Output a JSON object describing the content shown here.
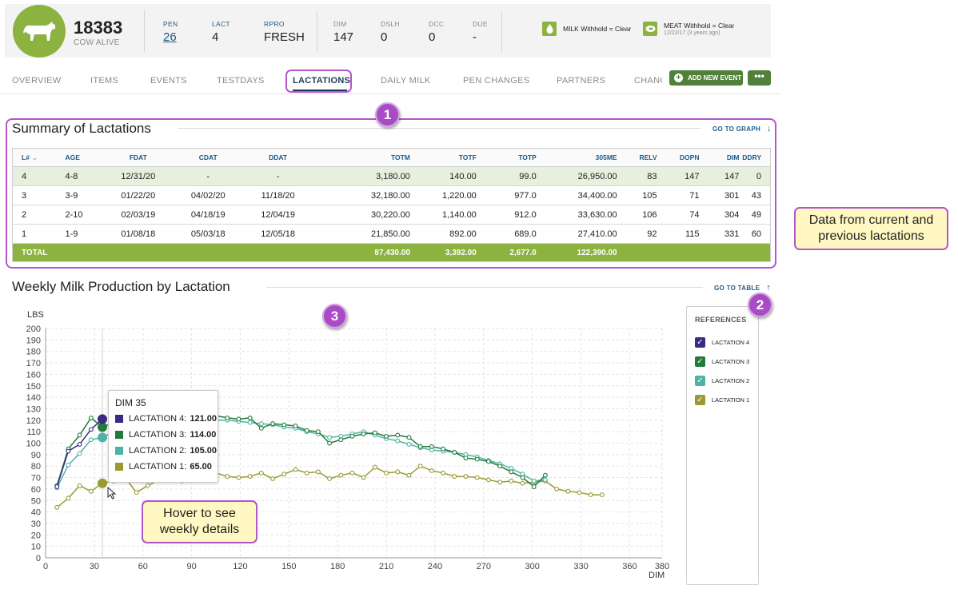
{
  "header": {
    "cow_id": "18383",
    "cow_status": "COW ALIVE",
    "stats": [
      {
        "label": "PEN",
        "value": "26",
        "link": true
      },
      {
        "label": "LACT",
        "value": "4"
      },
      {
        "label": "RPRO",
        "value": "FRESH"
      },
      {
        "label": "DIM",
        "value": "147"
      },
      {
        "label": "DSLH",
        "value": "0"
      },
      {
        "label": "DCC",
        "value": "0"
      },
      {
        "label": "DUE",
        "value": "-"
      }
    ],
    "milk_withhold": "MILK Withhold = Clear",
    "meat_withhold": "MEAT Withhold = Clear",
    "meat_withhold_date": "12/22/17 (3 years ago)"
  },
  "tabs": [
    "OVERVIEW",
    "ITEMS",
    "EVENTS",
    "TESTDAYS",
    "LACTATIONS",
    "DAILY MILK",
    "PEN CHANGES",
    "PARTNERS",
    "CHANG"
  ],
  "actions": {
    "add_event": "ADD NEW EVENT",
    "more": "•••"
  },
  "summary": {
    "title": "Summary of Lactations",
    "goto_graph": "GO TO GRAPH",
    "columns": [
      "L#",
      "AGE",
      "FDAT",
      "CDAT",
      "DDAT",
      "TOTM",
      "TOTF",
      "TOTP",
      "305ME",
      "RELV",
      "DOPN",
      "DIM",
      "DDRY"
    ],
    "rows": [
      [
        "4",
        "4-8",
        "12/31/20",
        "-",
        "-",
        "3,180.00",
        "140.00",
        "99.0",
        "26,950.00",
        "83",
        "147",
        "147",
        "0"
      ],
      [
        "3",
        "3-9",
        "01/22/20",
        "04/02/20",
        "11/18/20",
        "32,180.00",
        "1,220.00",
        "977.0",
        "34,400.00",
        "105",
        "71",
        "301",
        "43"
      ],
      [
        "2",
        "2-10",
        "02/03/19",
        "04/18/19",
        "12/04/19",
        "30,220.00",
        "1,140.00",
        "912.0",
        "33,630.00",
        "106",
        "74",
        "304",
        "49"
      ],
      [
        "1",
        "1-9",
        "01/08/18",
        "05/03/18",
        "12/05/18",
        "21,850.00",
        "892.00",
        "689.0",
        "27,410.00",
        "92",
        "115",
        "331",
        "60"
      ]
    ],
    "total_label": "TOTAL",
    "totals": {
      "TOTM": "87,430.00",
      "TOTF": "3,392.00",
      "TOTP": "2,677.0",
      "305ME": "122,390.00"
    }
  },
  "chart_section": {
    "title": "Weekly Milk Production by Lactation",
    "goto_table": "GO TO TABLE"
  },
  "callouts": {
    "badge1": "1",
    "badge2": "2",
    "badge3": "3",
    "table_note": "Data from current and previous lactations",
    "hover_note": "Hover to see weekly details"
  },
  "legend": {
    "title": "REFERENCES",
    "items": [
      {
        "label": "LACTATION 4",
        "color": "#3a2a86"
      },
      {
        "label": "LACTATION 3",
        "color": "#237a3b"
      },
      {
        "label": "LACTATION 2",
        "color": "#4db3a6"
      },
      {
        "label": "LACTATION 1",
        "color": "#9a9a33"
      }
    ]
  },
  "tooltip": {
    "title": "DIM 35",
    "rows": [
      {
        "label": "LACTATION 4:",
        "value": "121.00",
        "color": "#3a2a86"
      },
      {
        "label": "LACTATION 3:",
        "value": "114.00",
        "color": "#237a3b"
      },
      {
        "label": "LACTATION 2:",
        "value": "105.00",
        "color": "#4db3a6"
      },
      {
        "label": "LACTATION 1:",
        "value": "65.00",
        "color": "#9a9a33"
      }
    ]
  },
  "chart_data": {
    "type": "line",
    "ylabel": "LBS",
    "xlabel": "DIM",
    "xlim": [
      0,
      380
    ],
    "ylim": [
      0,
      200
    ],
    "x_ticks": [
      0,
      30,
      60,
      90,
      120,
      150,
      180,
      210,
      240,
      270,
      300,
      330,
      360,
      380
    ],
    "y_ticks": [
      0,
      10,
      20,
      30,
      40,
      50,
      60,
      70,
      80,
      90,
      100,
      110,
      120,
      130,
      140,
      150,
      160,
      170,
      180,
      190,
      200
    ],
    "hover_dim": 35,
    "series": [
      {
        "name": "LACTATION 4",
        "color": "#3a2a86",
        "points": [
          [
            7,
            62
          ],
          [
            14,
            93
          ],
          [
            21,
            99
          ],
          [
            28,
            112
          ],
          [
            35,
            121
          ]
        ]
      },
      {
        "name": "LACTATION 3",
        "color": "#237a3b",
        "points": [
          [
            7,
            63
          ],
          [
            14,
            95
          ],
          [
            21,
            107
          ],
          [
            28,
            122
          ],
          [
            35,
            114
          ],
          [
            42,
            118
          ],
          [
            49,
            121
          ],
          [
            56,
            120
          ],
          [
            63,
            119
          ],
          [
            70,
            122
          ],
          [
            77,
            120
          ],
          [
            84,
            121
          ],
          [
            91,
            118
          ],
          [
            98,
            125
          ],
          [
            105,
            124
          ],
          [
            112,
            122
          ],
          [
            119,
            121
          ],
          [
            126,
            122
          ],
          [
            133,
            113
          ],
          [
            140,
            117
          ],
          [
            147,
            116
          ],
          [
            154,
            115
          ],
          [
            161,
            111
          ],
          [
            168,
            110
          ],
          [
            175,
            100
          ],
          [
            182,
            103
          ],
          [
            189,
            106
          ],
          [
            196,
            108
          ],
          [
            203,
            109
          ],
          [
            210,
            106
          ],
          [
            217,
            107
          ],
          [
            224,
            105
          ],
          [
            231,
            97
          ],
          [
            238,
            97
          ],
          [
            245,
            95
          ],
          [
            252,
            92
          ],
          [
            259,
            87
          ],
          [
            266,
            86
          ],
          [
            273,
            84
          ],
          [
            280,
            80
          ],
          [
            287,
            75
          ],
          [
            294,
            70
          ],
          [
            301,
            62
          ],
          [
            308,
            72
          ]
        ]
      },
      {
        "name": "LACTATION 2",
        "color": "#4db3a6",
        "points": [
          [
            7,
            61
          ],
          [
            14,
            81
          ],
          [
            21,
            91
          ],
          [
            28,
            103
          ],
          [
            35,
            105
          ],
          [
            42,
            110
          ],
          [
            49,
            112
          ],
          [
            56,
            115
          ],
          [
            63,
            117
          ],
          [
            70,
            118
          ],
          [
            77,
            119
          ],
          [
            84,
            117
          ],
          [
            91,
            118
          ],
          [
            98,
            119
          ],
          [
            105,
            120
          ],
          [
            112,
            120
          ],
          [
            119,
            119
          ],
          [
            126,
            118
          ],
          [
            133,
            117
          ],
          [
            140,
            116
          ],
          [
            147,
            114
          ],
          [
            154,
            113
          ],
          [
            161,
            110
          ],
          [
            168,
            108
          ],
          [
            175,
            105
          ],
          [
            182,
            106
          ],
          [
            189,
            108
          ],
          [
            196,
            110
          ],
          [
            203,
            107
          ],
          [
            210,
            104
          ],
          [
            217,
            102
          ],
          [
            224,
            99
          ],
          [
            231,
            96
          ],
          [
            238,
            94
          ],
          [
            245,
            93
          ],
          [
            252,
            92
          ],
          [
            259,
            90
          ],
          [
            266,
            88
          ],
          [
            273,
            85
          ],
          [
            280,
            82
          ],
          [
            287,
            78
          ],
          [
            294,
            73
          ],
          [
            301,
            67
          ],
          [
            308,
            68
          ]
        ]
      },
      {
        "name": "LACTATION 1",
        "color": "#9a9a33",
        "points": [
          [
            7,
            44
          ],
          [
            14,
            52
          ],
          [
            21,
            63
          ],
          [
            28,
            58
          ],
          [
            35,
            65
          ],
          [
            42,
            67
          ],
          [
            49,
            70
          ],
          [
            56,
            57
          ],
          [
            63,
            63
          ],
          [
            70,
            68
          ],
          [
            77,
            69
          ],
          [
            84,
            67
          ],
          [
            91,
            70
          ],
          [
            98,
            70
          ],
          [
            105,
            74
          ],
          [
            112,
            71
          ],
          [
            119,
            70
          ],
          [
            126,
            71
          ],
          [
            133,
            74
          ],
          [
            140,
            69
          ],
          [
            147,
            73
          ],
          [
            154,
            77
          ],
          [
            161,
            74
          ],
          [
            168,
            75
          ],
          [
            175,
            69
          ],
          [
            182,
            72
          ],
          [
            189,
            74
          ],
          [
            196,
            70
          ],
          [
            203,
            79
          ],
          [
            210,
            74
          ],
          [
            217,
            75
          ],
          [
            224,
            72
          ],
          [
            231,
            80
          ],
          [
            238,
            76
          ],
          [
            245,
            74
          ],
          [
            252,
            71
          ],
          [
            259,
            71
          ],
          [
            266,
            70
          ],
          [
            273,
            68
          ],
          [
            280,
            66
          ],
          [
            287,
            67
          ],
          [
            294,
            65
          ],
          [
            301,
            66
          ],
          [
            308,
            67
          ],
          [
            315,
            60
          ],
          [
            322,
            58
          ],
          [
            329,
            57
          ],
          [
            336,
            55
          ],
          [
            343,
            55
          ]
        ]
      }
    ]
  }
}
